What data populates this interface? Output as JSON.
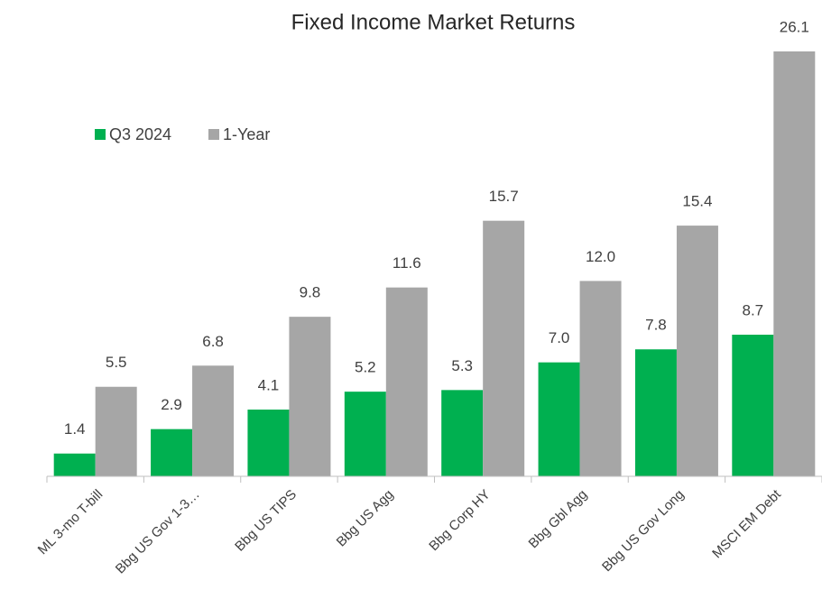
{
  "chart_data": {
    "type": "bar",
    "title": "Fixed Income Market Returns",
    "categories": [
      "ML 3-mo T-bill",
      "Bbg US Gov 1-3…",
      "Bbg US TIPS",
      "Bbg US Agg",
      "Bbg Corp HY",
      "Bbg Gbl Agg",
      "Bbg US Gov Long",
      "MSCI EM Debt"
    ],
    "series": [
      {
        "name": "Q3 2024",
        "color": "#00b050",
        "values": [
          1.4,
          2.9,
          4.1,
          5.2,
          5.3,
          7.0,
          7.8,
          8.7
        ],
        "value_labels": [
          "1.4",
          "2.9",
          "4.1",
          "5.2",
          "5.3",
          "7.0",
          "7.8",
          "8.7"
        ]
      },
      {
        "name": "1-Year",
        "color": "#a6a6a6",
        "values": [
          5.5,
          6.8,
          9.8,
          11.6,
          15.7,
          12.0,
          15.4,
          26.1
        ],
        "value_labels": [
          "5.5",
          "6.8",
          "9.8",
          "11.6",
          "15.7",
          "12.0",
          "15.4",
          "26.1"
        ]
      }
    ],
    "legend": "upper left"
  }
}
